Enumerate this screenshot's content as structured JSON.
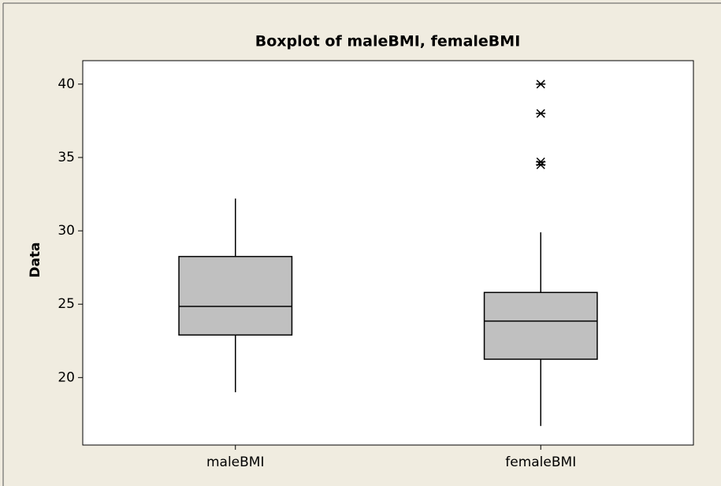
{
  "chart_data": {
    "type": "box",
    "title": "Boxplot of maleBMI, femaleBMI",
    "y_label": "Data",
    "categories": [
      "maleBMI",
      "femaleBMI"
    ],
    "boxes": [
      {
        "whisker_low": 19.0,
        "q1": 22.9,
        "median": 24.85,
        "q3": 28.25,
        "whisker_high": 32.2,
        "outliers": []
      },
      {
        "whisker_low": 16.7,
        "q1": 21.25,
        "median": 23.85,
        "q3": 25.8,
        "whisker_high": 29.9,
        "outliers": [
          40,
          38,
          34.7,
          34.5
        ]
      }
    ],
    "color": "#c0c0c0",
    "ylim": [
      15.4,
      41.6
    ],
    "yticks": [
      20,
      25,
      30,
      35,
      40
    ],
    "grid": false
  }
}
